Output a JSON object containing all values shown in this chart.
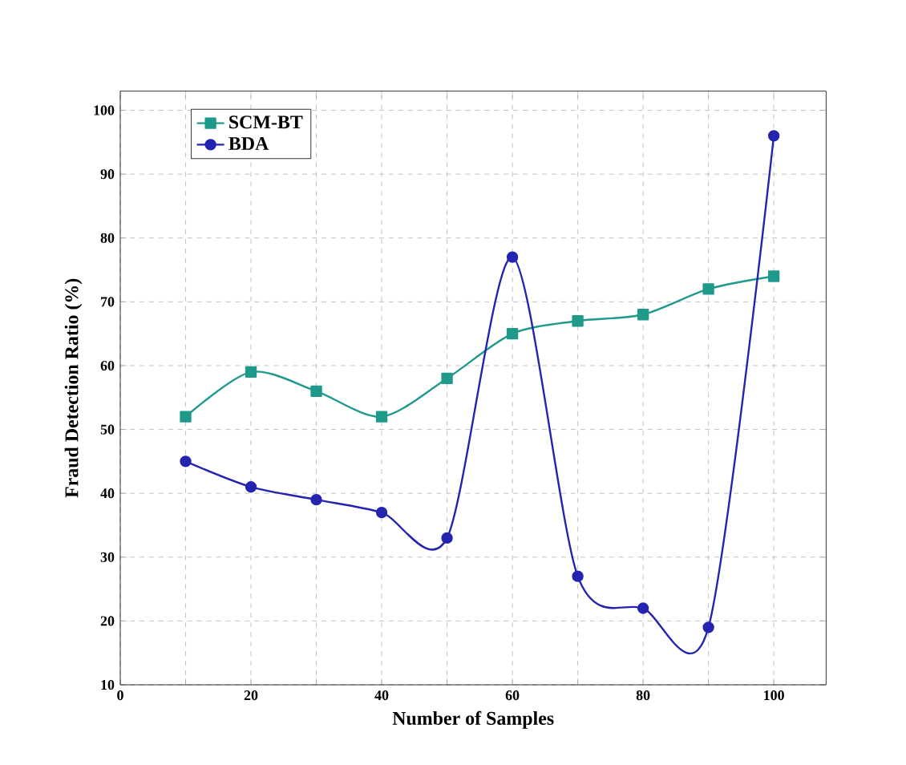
{
  "chart_data": {
    "type": "line",
    "xlabel": "Number of Samples",
    "ylabel": "Fraud Detection Ratio (%)",
    "x": [
      10,
      20,
      30,
      40,
      50,
      60,
      70,
      80,
      90,
      100
    ],
    "series": [
      {
        "name": "SCM-BT",
        "color": "#1f9a8a",
        "marker": "square",
        "values": [
          52,
          59,
          56,
          52,
          58,
          65,
          67,
          68,
          72,
          74
        ]
      },
      {
        "name": "BDA",
        "color": "#2424b0",
        "marker": "circle",
        "values": [
          45,
          41,
          39,
          37,
          33,
          77,
          27,
          22,
          19,
          96
        ]
      }
    ],
    "xlim": [
      0,
      108
    ],
    "ylim": [
      10,
      103
    ],
    "xticks": [
      0,
      {
        "value": 10,
        "label": null
      },
      20,
      {
        "value": 30,
        "label": null
      },
      40,
      {
        "value": 50,
        "label": null
      },
      60,
      {
        "value": 70,
        "label": null
      },
      80,
      {
        "value": 90,
        "label": null
      },
      100
    ],
    "yticks": [
      10,
      20,
      30,
      40,
      50,
      60,
      70,
      80,
      90,
      100
    ],
    "grid": true,
    "legend": "top left",
    "line_style": "solid"
  }
}
